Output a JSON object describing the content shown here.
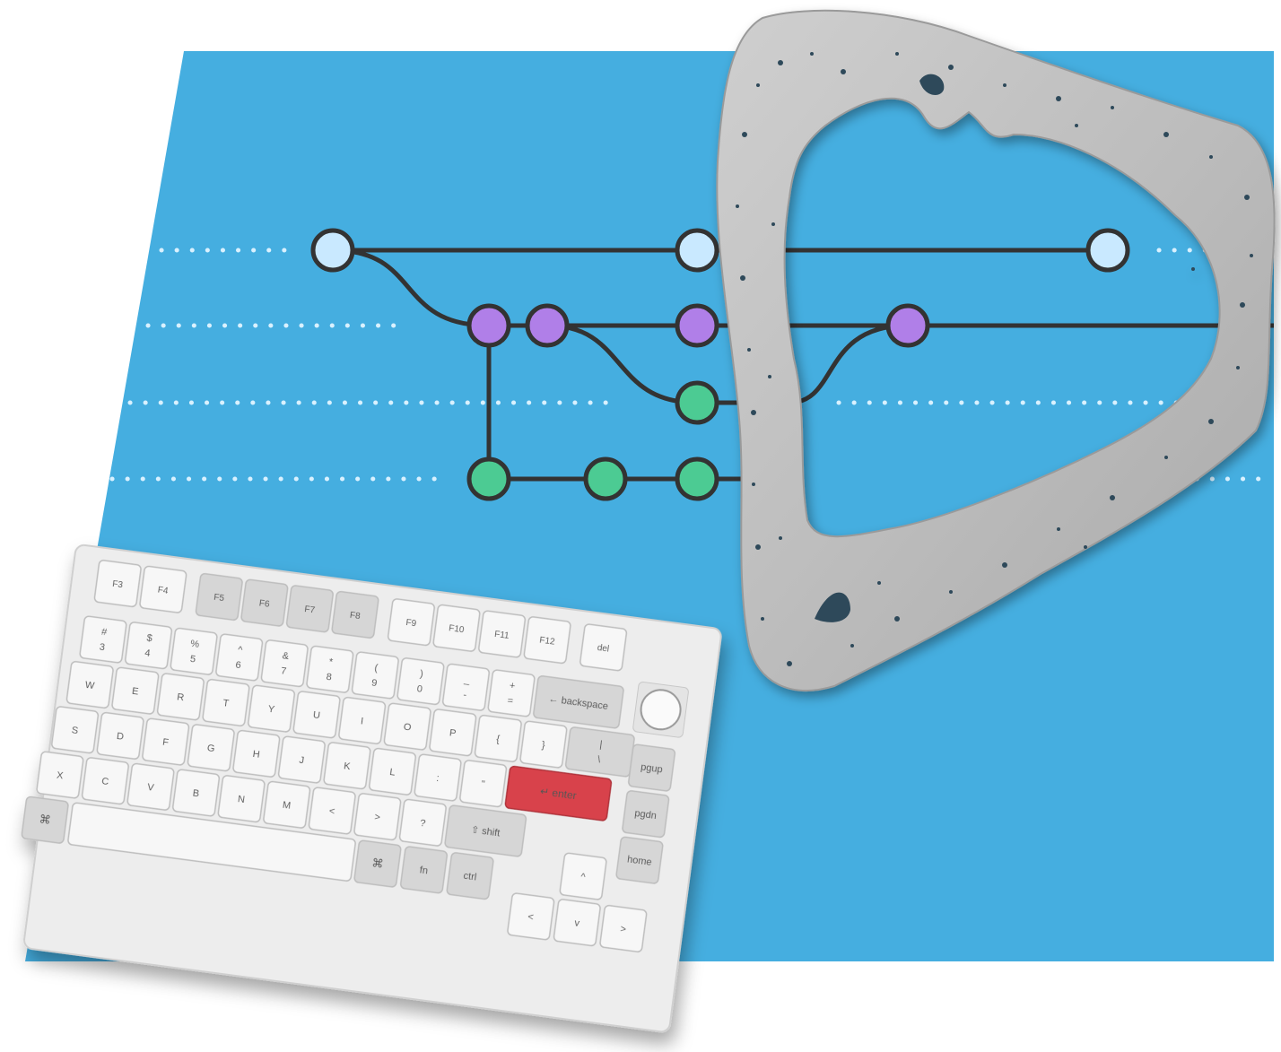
{
  "colors": {
    "background": "#ffffff",
    "blue_panel": "#45aee0",
    "line": "#333333",
    "node_light_blue": "#c9e9ff",
    "node_purple": "#b07fe8",
    "node_green": "#4ccb93",
    "keyboard_body": "#ededed",
    "key": "#f7f7f7",
    "key_dark": "#d6d6d6",
    "enter_key": "#d8434b",
    "bone": "#b8b8b8"
  },
  "graph": {
    "rows": [
      "light-blue",
      "purple",
      "green-upper",
      "green-lower"
    ],
    "nodes": [
      {
        "row": "light-blue",
        "color": "light-blue"
      },
      {
        "row": "light-blue",
        "color": "light-blue"
      },
      {
        "row": "light-blue",
        "color": "light-blue"
      },
      {
        "row": "purple",
        "color": "purple"
      },
      {
        "row": "purple",
        "color": "purple"
      },
      {
        "row": "purple",
        "color": "purple"
      },
      {
        "row": "purple",
        "color": "purple"
      },
      {
        "row": "green-upper",
        "color": "green"
      },
      {
        "row": "green-lower",
        "color": "green"
      },
      {
        "row": "green-lower",
        "color": "green"
      },
      {
        "row": "green-lower",
        "color": "green"
      }
    ]
  },
  "keyboard": {
    "fn_row": [
      "F3",
      "F4",
      "F5",
      "F6",
      "F7",
      "F8",
      "F9",
      "F10",
      "F11",
      "F12",
      "del"
    ],
    "num_row_top": [
      "#",
      "$",
      "%",
      "^",
      "&",
      "*",
      "(",
      ")",
      "_",
      "+"
    ],
    "num_row_bottom": [
      "3",
      "4",
      "5",
      "6",
      "7",
      "8",
      "9",
      "0",
      "-",
      "="
    ],
    "qwerty_row": [
      "W",
      "E",
      "R",
      "T",
      "Y",
      "U",
      "I",
      "O",
      "P",
      "{",
      "}"
    ],
    "home_row": [
      "S",
      "D",
      "F",
      "G",
      "H",
      "J",
      "K",
      "L",
      ":",
      "\""
    ],
    "bottom_alpha_row": [
      "X",
      "C",
      "V",
      "B",
      "N",
      "M",
      "<",
      ">",
      "?"
    ],
    "backspace": "backspace",
    "enter": "enter",
    "shift": "shift",
    "backslash": "\\",
    "pipe": "|",
    "cmd_symbol": "⌘",
    "fn": "fn",
    "ctrl": "ctrl",
    "pgup": "pgup",
    "pgdn": "pgdn",
    "home": "home",
    "arrow_up": "^",
    "arrow_left": "<",
    "arrow_down": "v",
    "arrow_right": ">"
  }
}
